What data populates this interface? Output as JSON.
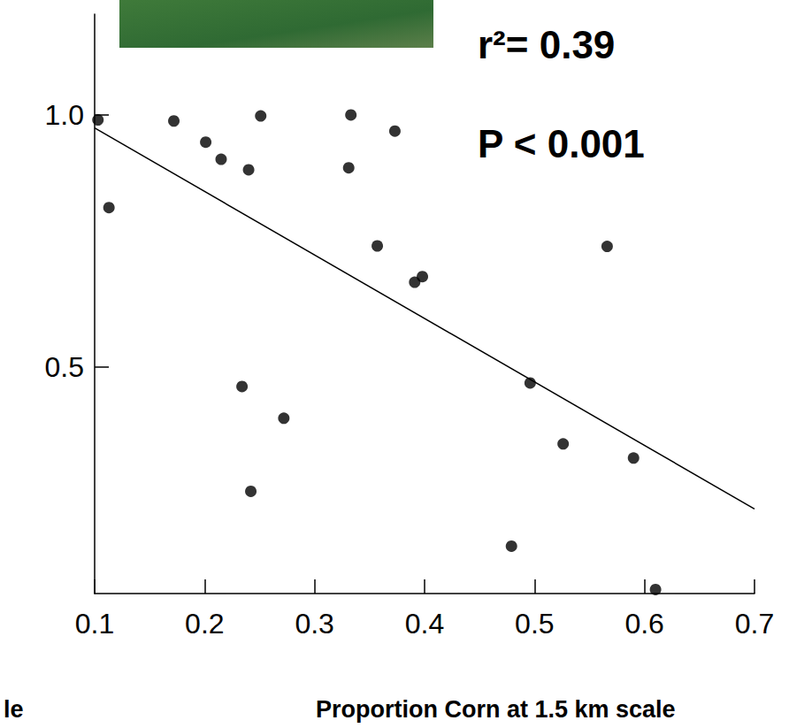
{
  "chart_data": {
    "type": "scatter",
    "x_label": "Proportion Corn at 1.5 km scale",
    "annotations": [
      "r²= 0.39",
      "P < 0.001",
      "le"
    ],
    "x": [
      0.103,
      0.113,
      0.172,
      0.201,
      0.215,
      0.24,
      0.251,
      0.234,
      0.242,
      0.272,
      0.331,
      0.333,
      0.373,
      0.357,
      0.391,
      0.398,
      0.479,
      0.496,
      0.526,
      0.566,
      0.59,
      0.61
    ],
    "values": [
      0.99,
      0.816,
      0.988,
      0.946,
      0.912,
      0.891,
      0.998,
      0.461,
      0.253,
      0.398,
      0.895,
      1.0,
      0.968,
      0.74,
      0.668,
      0.679,
      0.144,
      0.468,
      0.347,
      0.739,
      0.319,
      0.058
    ],
    "color": "#000000",
    "marker": "circle",
    "trend_line": {
      "x": [
        0.1,
        0.7
      ],
      "values": [
        0.974,
        0.218
      ],
      "line_style": "solid"
    },
    "xlim": [
      0.1,
      0.7
    ],
    "xticks": [
      0.1,
      0.2,
      0.3,
      0.4,
      0.5,
      0.6,
      0.7
    ],
    "ylim": [
      0.05,
      1.2
    ],
    "yticks": [
      0.5,
      {
        "value": 1.0,
        "label": "1.0"
      }
    ],
    "grid": false
  }
}
